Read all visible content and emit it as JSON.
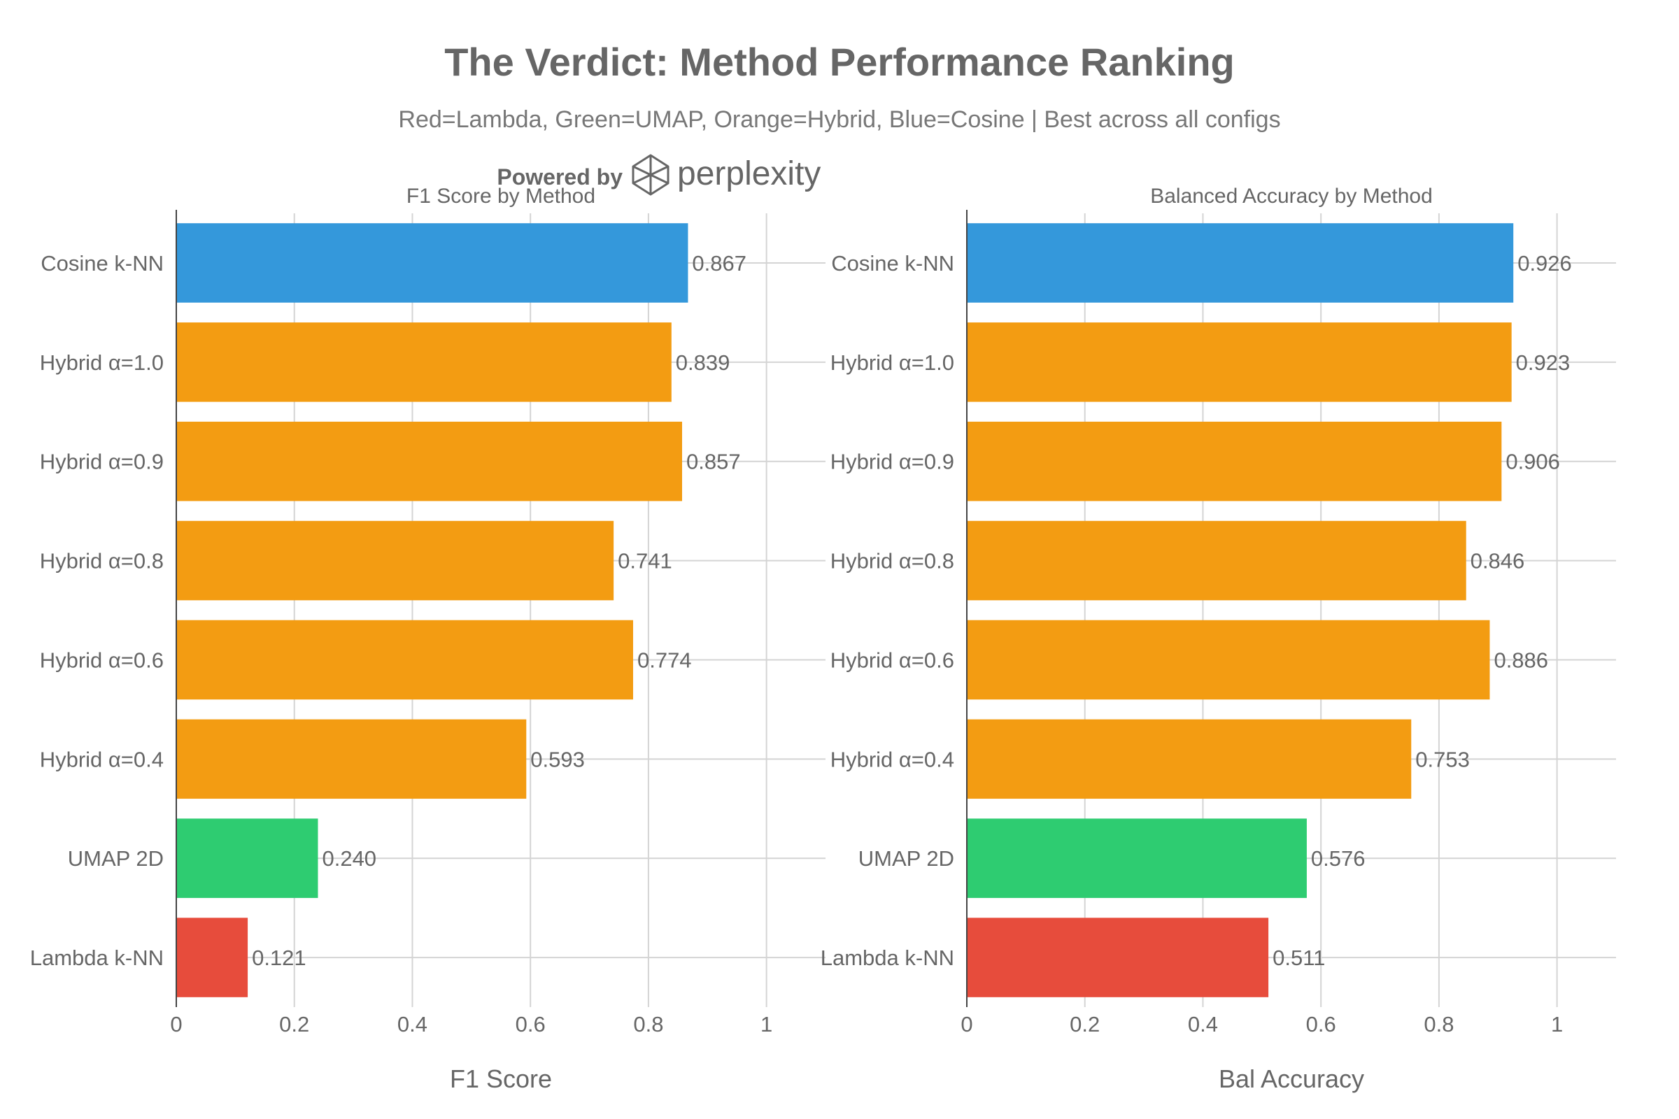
{
  "header": {
    "title": "The Verdict: Method Performance Ranking",
    "subtitle": "Red=Lambda, Green=UMAP, Orange=Hybrid, Blue=Cosine | Best across all configs"
  },
  "watermark": {
    "powered_by": "Powered by",
    "brand": "perplexity"
  },
  "colors": {
    "lambda": "#E74C3C",
    "umap": "#2ECC71",
    "hybrid": "#F39C12",
    "cosine": "#3498DB"
  },
  "chart_data": [
    {
      "type": "bar",
      "orientation": "horizontal",
      "title": "F1 Score by Method",
      "xlabel": "F1 Score",
      "ylabel": "",
      "xlim": [
        0,
        1.1
      ],
      "ticks": [
        "0",
        "0.2",
        "0.4",
        "0.6",
        "0.8",
        "1"
      ],
      "tick_values": [
        0,
        0.2,
        0.4,
        0.6,
        0.8,
        1
      ],
      "grid": true,
      "categories": [
        "Cosine k-NN",
        "Hybrid α=1.0",
        "Hybrid α=0.9",
        "Hybrid α=0.8",
        "Hybrid α=0.6",
        "Hybrid α=0.4",
        "UMAP 2D",
        "Lambda k-NN"
      ],
      "groups": [
        "cosine",
        "hybrid",
        "hybrid",
        "hybrid",
        "hybrid",
        "hybrid",
        "umap",
        "lambda"
      ],
      "values": [
        0.867,
        0.839,
        0.857,
        0.741,
        0.774,
        0.593,
        0.24,
        0.121
      ],
      "labels": [
        "0.867",
        "0.839",
        "0.857",
        "0.741",
        "0.774",
        "0.593",
        "0.240",
        "0.121"
      ]
    },
    {
      "type": "bar",
      "orientation": "horizontal",
      "title": "Balanced Accuracy by Method",
      "xlabel": "Bal Accuracy",
      "ylabel": "",
      "xlim": [
        0,
        1.1
      ],
      "ticks": [
        "0",
        "0.2",
        "0.4",
        "0.6",
        "0.8",
        "1"
      ],
      "tick_values": [
        0,
        0.2,
        0.4,
        0.6,
        0.8,
        1
      ],
      "grid": true,
      "categories": [
        "Cosine k-NN",
        "Hybrid α=1.0",
        "Hybrid α=0.9",
        "Hybrid α=0.8",
        "Hybrid α=0.6",
        "Hybrid α=0.4",
        "UMAP 2D",
        "Lambda k-NN"
      ],
      "groups": [
        "cosine",
        "hybrid",
        "hybrid",
        "hybrid",
        "hybrid",
        "hybrid",
        "umap",
        "lambda"
      ],
      "values": [
        0.926,
        0.923,
        0.906,
        0.846,
        0.886,
        0.753,
        0.576,
        0.511
      ],
      "labels": [
        "0.926",
        "0.923",
        "0.906",
        "0.846",
        "0.886",
        "0.753",
        "0.576",
        "0.511"
      ]
    }
  ]
}
